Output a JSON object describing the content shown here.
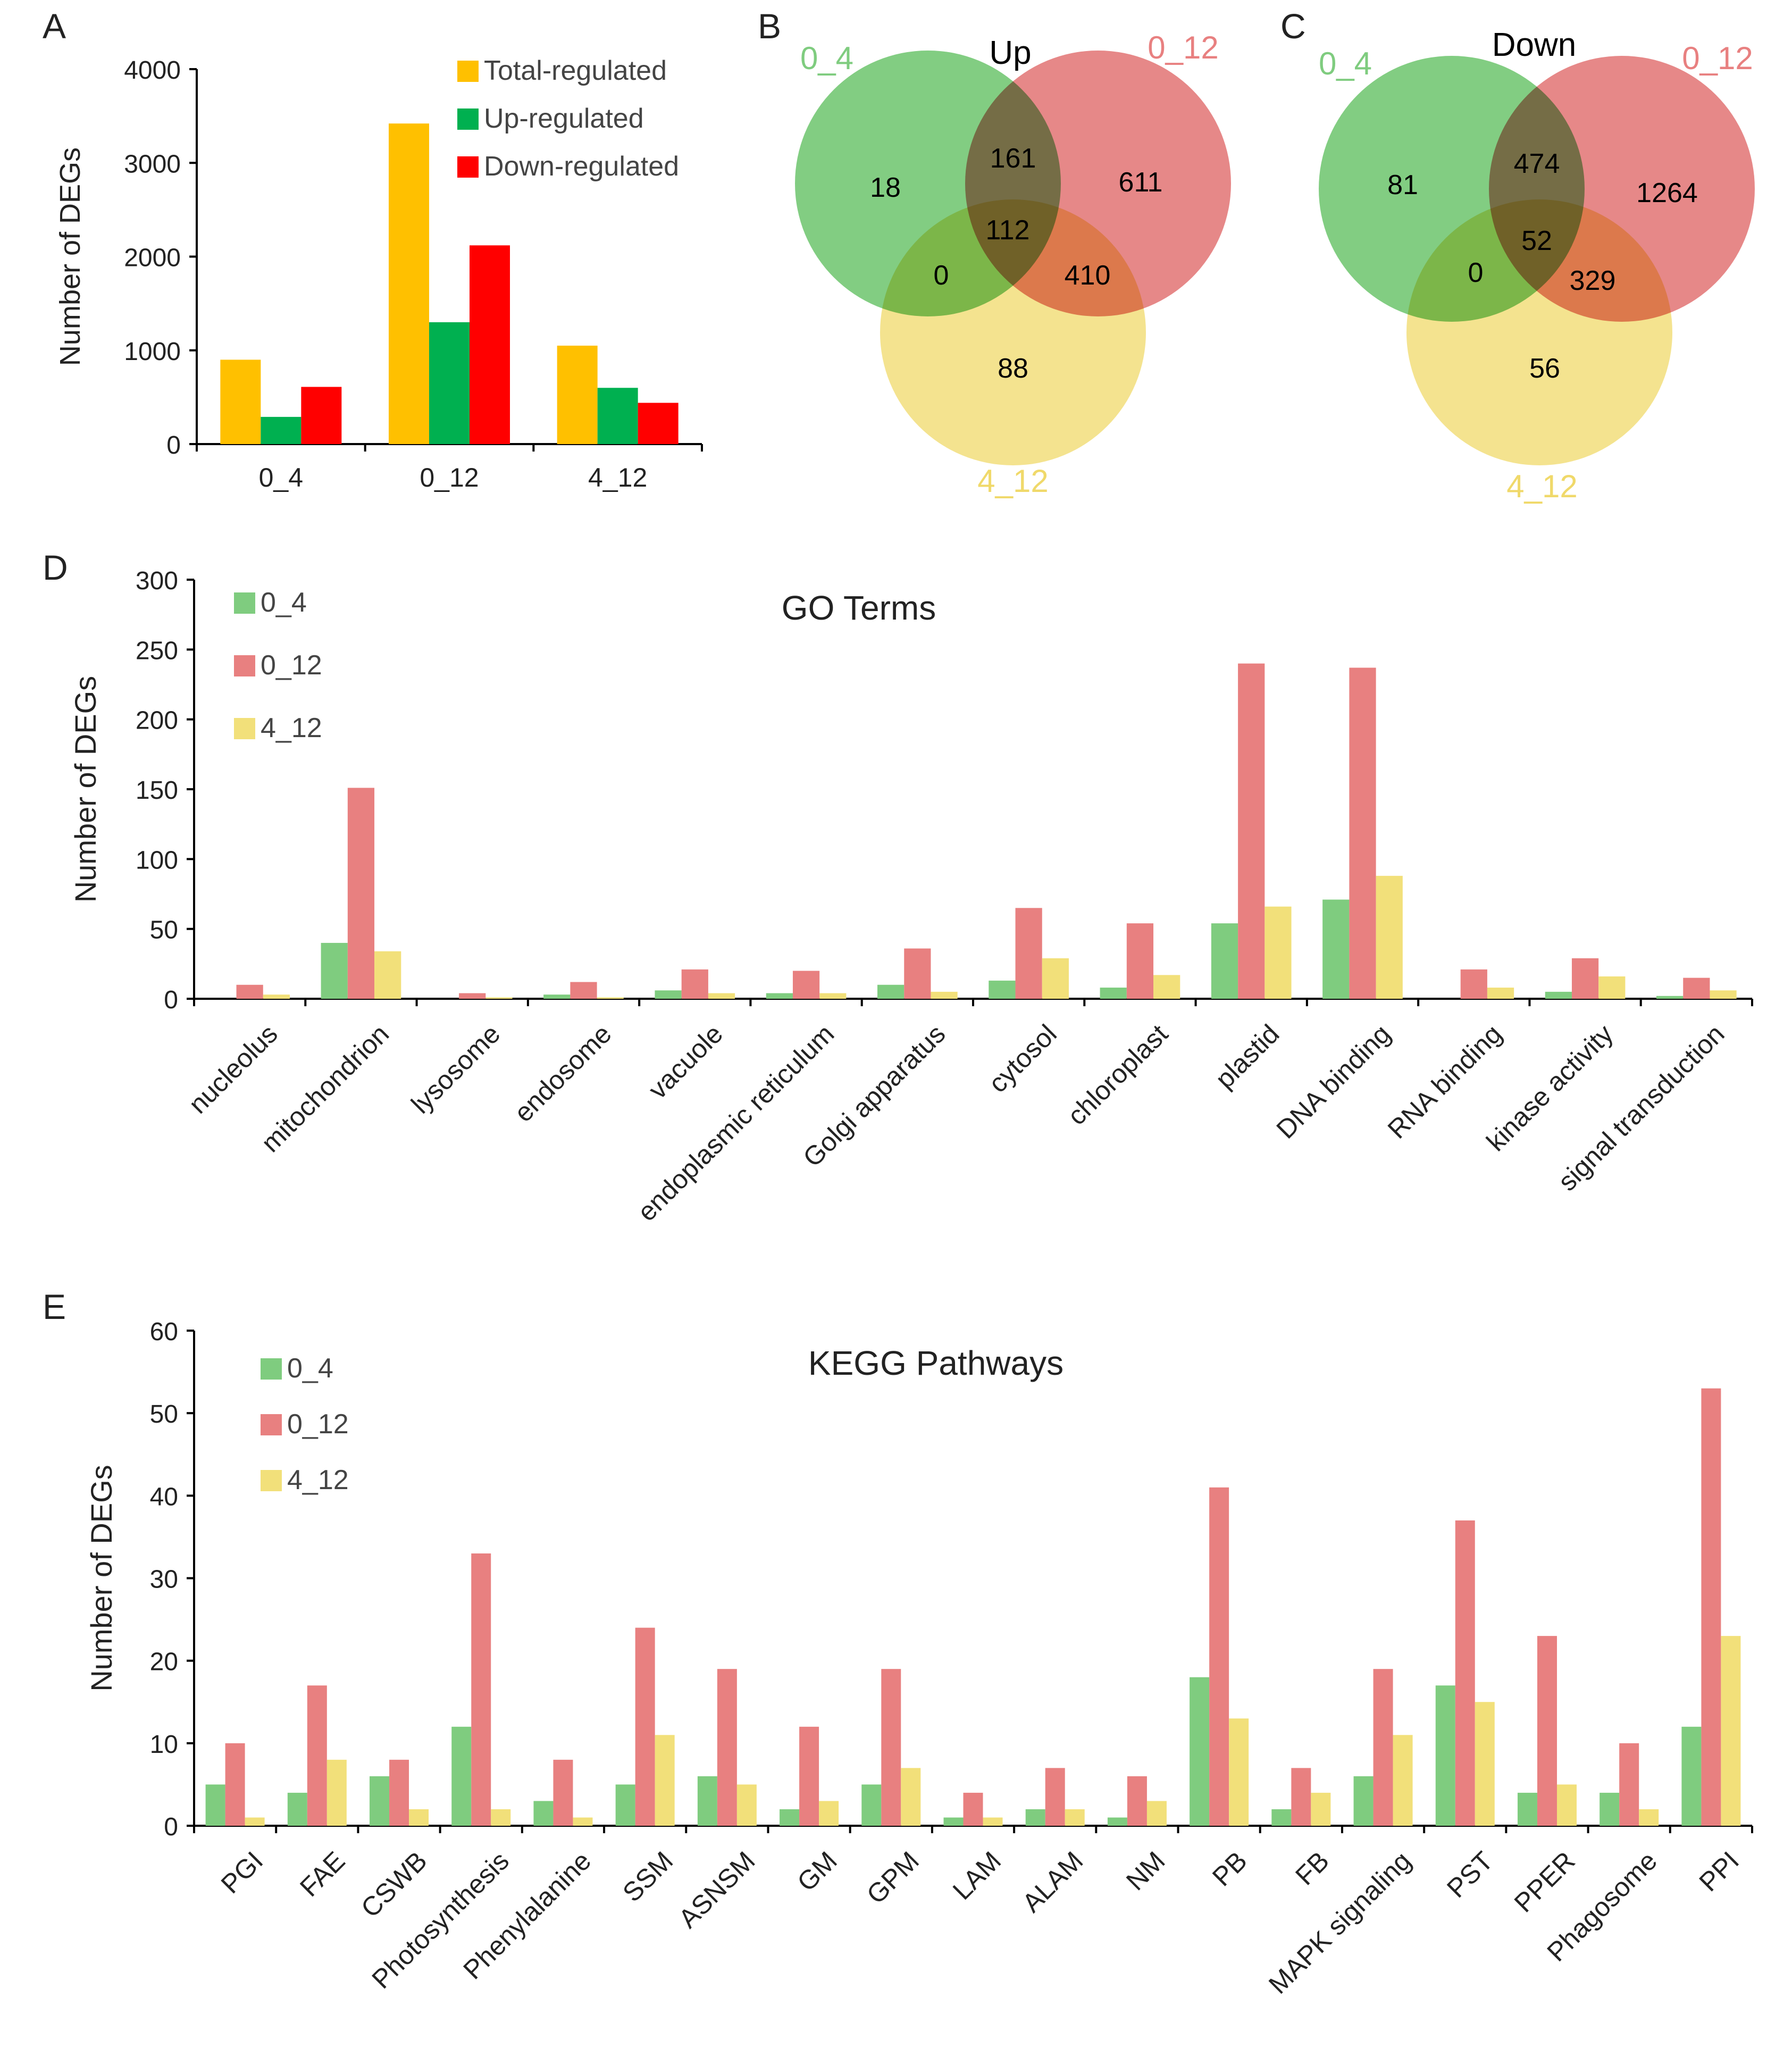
{
  "colors": {
    "total": "#FFC000",
    "up": "#00B050",
    "down": "#FF0000",
    "s04": "#7FCC7F",
    "s012": "#E88080",
    "s412": "#F2E07A",
    "venn_green": "#6CC46C",
    "venn_red": "#E06A6A",
    "venn_yellow": "#F0D96A",
    "venn_label_green": "#7FCC7F",
    "venn_label_red": "#E88080",
    "venn_label_yellow": "#F0D96A"
  },
  "panels": {
    "A": "A",
    "B": "B",
    "C": "C",
    "D": "D",
    "E": "E"
  },
  "chart_data": [
    {
      "id": "A",
      "type": "bar",
      "title": "",
      "xlabel": "",
      "ylabel": "Number of DEGs",
      "ylim": [
        0,
        4000
      ],
      "yticks": [
        0,
        1000,
        2000,
        3000,
        4000
      ],
      "legend_position": "top-right",
      "categories": [
        "0_4",
        "0_12",
        "4_12"
      ],
      "series": [
        {
          "name": "Total-regulated",
          "color": "#FFC000",
          "values": [
            900,
            3420,
            1050
          ]
        },
        {
          "name": "Up-regulated",
          "color": "#00B050",
          "values": [
            290,
            1300,
            600
          ]
        },
        {
          "name": "Down-regulated",
          "color": "#FF0000",
          "values": [
            610,
            2120,
            440
          ]
        }
      ]
    },
    {
      "id": "B",
      "type": "venn",
      "title": "Up",
      "sets": [
        "0_4",
        "0_12",
        "4_12"
      ],
      "regions": {
        "only_0_4": "18",
        "only_0_12": "611",
        "only_4_12": "88",
        "0_4_and_0_12": "161",
        "0_4_and_4_12": "0",
        "0_12_and_4_12": "410",
        "all": "112"
      }
    },
    {
      "id": "C",
      "type": "venn",
      "title": "Down",
      "sets": [
        "0_4",
        "0_12",
        "4_12"
      ],
      "regions": {
        "only_0_4": "81",
        "only_0_12": "1264",
        "only_4_12": "56",
        "0_4_and_0_12": "474",
        "0_4_and_4_12": "0",
        "0_12_and_4_12": "329",
        "all": "52"
      }
    },
    {
      "id": "D",
      "type": "bar",
      "title": "GO Terms",
      "xlabel": "",
      "ylabel": "Number of DEGs",
      "ylim": [
        0,
        300
      ],
      "yticks": [
        0,
        50,
        100,
        150,
        200,
        250,
        300
      ],
      "legend_position": "top-left",
      "categories": [
        "nucleolus",
        "mitochondrion",
        "lysosome",
        "endosome",
        "vacuole",
        "endoplasmic reticulum",
        "Golgi apparatus",
        "cytosol",
        "chloroplast",
        "plastid",
        "DNA binding",
        "RNA binding",
        "kinase activity",
        "signal transduction"
      ],
      "series": [
        {
          "name": "0_4",
          "color": "#7FCC7F",
          "values": [
            0,
            40,
            0,
            3,
            6,
            4,
            10,
            13,
            8,
            54,
            71,
            0,
            5,
            2
          ]
        },
        {
          "name": "0_12",
          "color": "#E88080",
          "values": [
            10,
            151,
            4,
            12,
            21,
            20,
            36,
            65,
            54,
            240,
            237,
            21,
            29,
            15
          ]
        },
        {
          "name": "4_12",
          "color": "#F2E07A",
          "values": [
            3,
            34,
            1,
            1,
            4,
            4,
            5,
            29,
            17,
            66,
            88,
            8,
            16,
            6
          ]
        }
      ]
    },
    {
      "id": "E",
      "type": "bar",
      "title": "KEGG Pathways",
      "xlabel": "",
      "ylabel": "Number of DEGs",
      "ylim": [
        0,
        60
      ],
      "yticks": [
        0,
        10,
        20,
        30,
        40,
        50,
        60
      ],
      "legend_position": "top-left",
      "categories": [
        "PGI",
        "FAE",
        "CSWB",
        "Photosynthesis",
        "Phenylalanine",
        "SSM",
        "ASNSM",
        "GM",
        "GPM",
        "LAM",
        "ALAM",
        "NM",
        "PB",
        "FB",
        "MAPK signaling",
        "PST",
        "PPER",
        "Phagosome",
        "PPI"
      ],
      "series": [
        {
          "name": "0_4",
          "color": "#7FCC7F",
          "values": [
            5,
            4,
            6,
            12,
            3,
            5,
            6,
            2,
            5,
            1,
            2,
            1,
            18,
            2,
            6,
            17,
            4,
            4,
            12
          ]
        },
        {
          "name": "0_12",
          "color": "#E88080",
          "values": [
            10,
            17,
            8,
            33,
            8,
            24,
            19,
            12,
            19,
            4,
            7,
            6,
            41,
            7,
            19,
            37,
            23,
            10,
            53
          ]
        },
        {
          "name": "4_12",
          "color": "#F2E07A",
          "values": [
            1,
            8,
            2,
            2,
            1,
            11,
            5,
            3,
            7,
            1,
            2,
            3,
            13,
            4,
            11,
            15,
            5,
            2,
            23
          ]
        }
      ]
    }
  ]
}
